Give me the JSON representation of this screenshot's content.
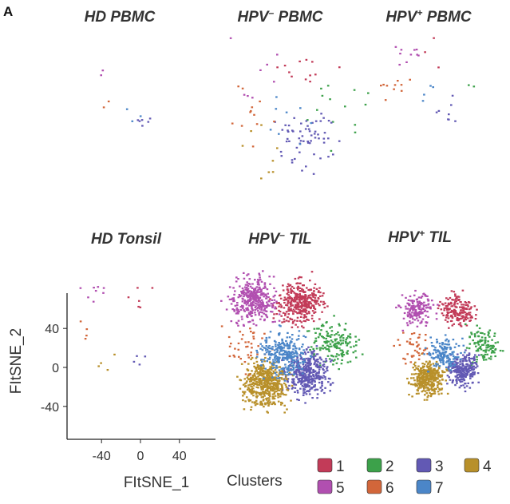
{
  "chart_data": {
    "type": "scatter",
    "figure_label": "A",
    "xlabel": "FItSNE_1",
    "ylabel": "FItSNE_2",
    "xlim": [
      -75,
      75
    ],
    "ylim": [
      -75,
      75
    ],
    "x_ticks": [
      -40,
      0,
      40
    ],
    "y_ticks": [
      40,
      0,
      -40
    ],
    "panels": [
      {
        "title": "HD PBMC",
        "super": "",
        "title_suffix": "",
        "n": 0
      },
      {
        "title": "HPV",
        "super": "–",
        "title_suffix": " PBMC",
        "n": 1
      },
      {
        "title": "HPV",
        "super": "+",
        "title_suffix": " PBMC",
        "n": 2
      },
      {
        "title": "HD Tonsil",
        "super": "",
        "title_suffix": "",
        "n": 3
      },
      {
        "title": "HPV",
        "super": "–",
        "title_suffix": " TIL",
        "n": 4
      },
      {
        "title": "HPV",
        "super": "+",
        "title_suffix": " TIL",
        "n": 5
      }
    ],
    "legend": {
      "title": "Clusters",
      "items": [
        {
          "label": "1",
          "color": "#c23b58"
        },
        {
          "label": "2",
          "color": "#3ca14a"
        },
        {
          "label": "3",
          "color": "#6259b4"
        },
        {
          "label": "4",
          "color": "#b8902a"
        },
        {
          "label": "5",
          "color": "#b14fb0"
        },
        {
          "label": "6",
          "color": "#d2663a"
        },
        {
          "label": "7",
          "color": "#4b86c8"
        }
      ]
    },
    "cluster_centers": [
      {
        "cluster": "1",
        "x": 15,
        "y": 48
      },
      {
        "cluster": "2",
        "x": 48,
        "y": 8
      },
      {
        "cluster": "3",
        "x": 22,
        "y": -20
      },
      {
        "cluster": "4",
        "x": -18,
        "y": -30
      },
      {
        "cluster": "5",
        "x": -30,
        "y": 50
      },
      {
        "cluster": "6",
        "x": -36,
        "y": 6
      },
      {
        "cluster": "7",
        "x": 0,
        "y": -2
      }
    ]
  }
}
